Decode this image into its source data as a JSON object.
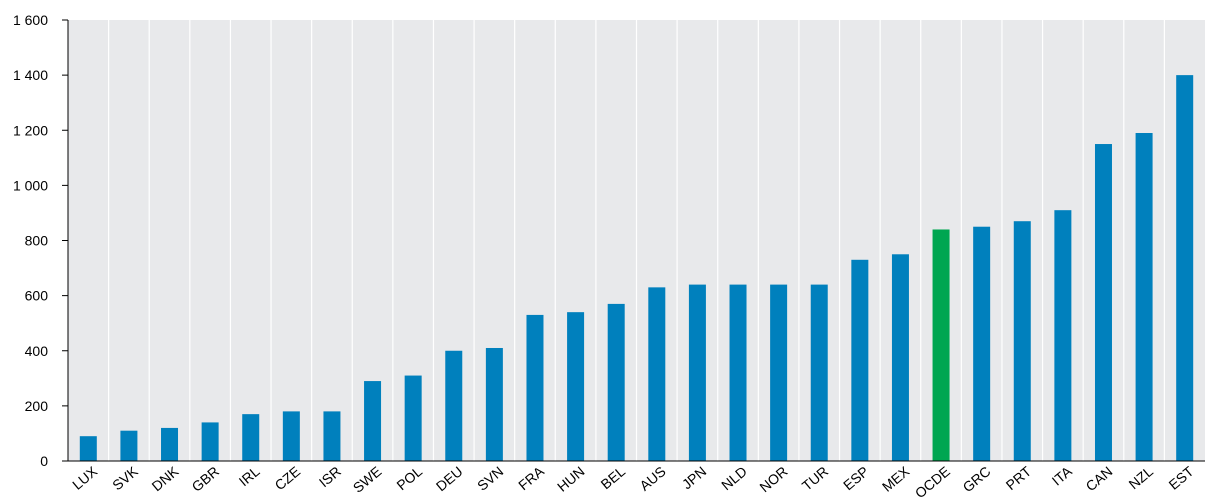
{
  "chart_data": {
    "type": "bar",
    "title": "",
    "xlabel": "",
    "ylabel": "",
    "ylim": [
      0,
      1600
    ],
    "y_ticks": [
      {
        "value": 0,
        "label": "0"
      },
      {
        "value": 200,
        "label": "200"
      },
      {
        "value": 400,
        "label": "400"
      },
      {
        "value": 600,
        "label": "600"
      },
      {
        "value": 800,
        "label": "800"
      },
      {
        "value": 1000,
        "label": "1 000"
      },
      {
        "value": 1200,
        "label": "1 200"
      },
      {
        "value": 1400,
        "label": "1 400"
      },
      {
        "value": 1600,
        "label": "1 600"
      }
    ],
    "grid": "vertical category lines",
    "legend": "none",
    "categories": [
      "LUX",
      "SVK",
      "DNK",
      "GBR",
      "IRL",
      "CZE",
      "ISR",
      "SWE",
      "POL",
      "DEU",
      "SVN",
      "FRA",
      "HUN",
      "BEL",
      "AUS",
      "JPN",
      "NLD",
      "NOR",
      "TUR",
      "ESP",
      "MEX",
      "OCDE",
      "GRC",
      "PRT",
      "ITA",
      "CAN",
      "NZL",
      "EST"
    ],
    "values": [
      90,
      110,
      120,
      140,
      170,
      180,
      180,
      290,
      310,
      400,
      410,
      530,
      540,
      570,
      630,
      640,
      640,
      640,
      640,
      730,
      750,
      840,
      850,
      870,
      910,
      1150,
      1190,
      1400
    ],
    "highlight": "OCDE",
    "colors": {
      "bar": "#0080bd",
      "highlight": "#00a651",
      "plot_background": "#e8e9eb",
      "gridline": "#ffffff",
      "axis": "#000000"
    }
  }
}
